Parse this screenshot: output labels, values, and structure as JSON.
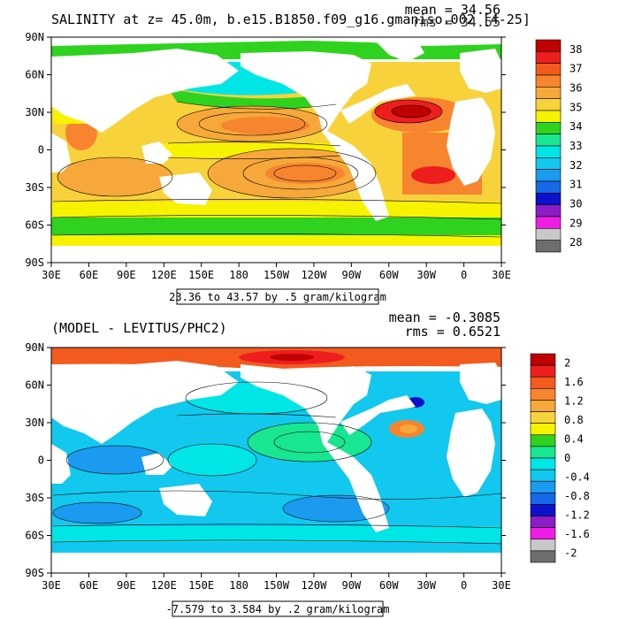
{
  "panels": [
    {
      "title": "SALINITY at z=  45.0m, b.e15.B1850.f09_g16.gmaniso.002 [4-25]",
      "mean_label": "mean = 34.56",
      "rms_label": "rms = 34.55",
      "range_label": "23.36 to 43.57 by .5 gram/kilogram",
      "lat_ticks": [
        "90N",
        "60N",
        "30N",
        "0",
        "30S",
        "60S",
        "90S"
      ],
      "lon_ticks": [
        "30E",
        "60E",
        "90E",
        "120E",
        "150E",
        "180",
        "150W",
        "120W",
        "90W",
        "60W",
        "30W",
        "0",
        "30E"
      ],
      "colorbar": {
        "labels": [
          "38",
          "37",
          "36",
          "35",
          "34",
          "33",
          "32",
          "31",
          "30",
          "29",
          "28"
        ],
        "colors": [
          "#c00000",
          "#ee1e1e",
          "#f35a1e",
          "#f7842e",
          "#f6a83a",
          "#f8d23a",
          "#f7f200",
          "#2fd21e",
          "#18e690",
          "#00e6e6",
          "#12c8ee",
          "#1a9bef",
          "#1568e6",
          "#0a12cc",
          "#8c1cc6",
          "#ee1ee6",
          "#c8c8c8",
          "#6e6e6e"
        ]
      }
    },
    {
      "title": "(MODEL - LEVITUS/PHC2)",
      "mean_label": "mean = -0.3085",
      "rms_label": "rms = 0.6521",
      "range_label": "-7.579 to 3.584 by .2 gram/kilogram",
      "lat_ticks": [
        "90N",
        "60N",
        "30N",
        "0",
        "30S",
        "60S",
        "90S"
      ],
      "lon_ticks": [
        "30E",
        "60E",
        "90E",
        "120E",
        "150E",
        "180",
        "150W",
        "120W",
        "90W",
        "60W",
        "30W",
        "0",
        "30E"
      ],
      "colorbar": {
        "labels": [
          "2",
          "1.6",
          "1.2",
          "0.8",
          "0.4",
          "0",
          "-0.4",
          "-0.8",
          "-1.2",
          "-1.6",
          "-2"
        ],
        "colors": [
          "#c00000",
          "#ee1e1e",
          "#f35a1e",
          "#f7842e",
          "#f6a83a",
          "#f8d23a",
          "#f7f200",
          "#2fd21e",
          "#18e690",
          "#00e6e6",
          "#12c8ee",
          "#1a9bef",
          "#1568e6",
          "#0a12cc",
          "#8c1cc6",
          "#ee1ee6",
          "#c8c8c8",
          "#6e6e6e"
        ]
      }
    }
  ]
}
